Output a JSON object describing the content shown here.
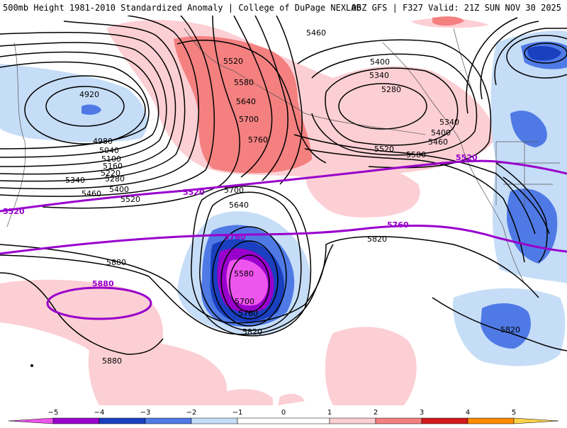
{
  "header": {
    "left": "500mb Height 1981-2010 Standardized Anomaly | College of DuPage NEXLAB",
    "right": "06Z GFS | F327 Valid: 21Z SUN NOV 30 2025"
  },
  "colors": {
    "neg5": "#ee55ee",
    "neg4": "#9900cc",
    "neg3": "#1a3fbf",
    "neg2": "#4f7ae6",
    "neg1": "#c6ddf7",
    "pos1": "#fccfd4",
    "pos2": "#f48080",
    "pos3": "#d4191e",
    "pos4": "#ff8c00",
    "pos5": "#ffd24a",
    "reference_line": "#9900cc"
  },
  "contour_labels": [
    "5460",
    "5400",
    "5340",
    "5280",
    "5520",
    "5580",
    "5640",
    "5700",
    "5760",
    "4920",
    "4980",
    "5040",
    "5100",
    "5160",
    "5220",
    "5280",
    "5340",
    "5400",
    "5460",
    "5520",
    "5520",
    "5580",
    "5340",
    "5400",
    "5460",
    "5700",
    "5640",
    "5580",
    "5700",
    "5760",
    "5820",
    "5820",
    "5880",
    "5880",
    "5820"
  ],
  "reference_labels": [
    "5520",
    "5520",
    "5520",
    "5760",
    "5760",
    "5880"
  ],
  "colorbar": {
    "ticks": [
      "−5",
      "−4",
      "−3",
      "−2",
      "−1",
      "0",
      "1",
      "2",
      "3",
      "4",
      "5"
    ]
  },
  "icons": [
    "colorbar-left-arrow-icon",
    "colorbar-right-arrow-icon"
  ]
}
